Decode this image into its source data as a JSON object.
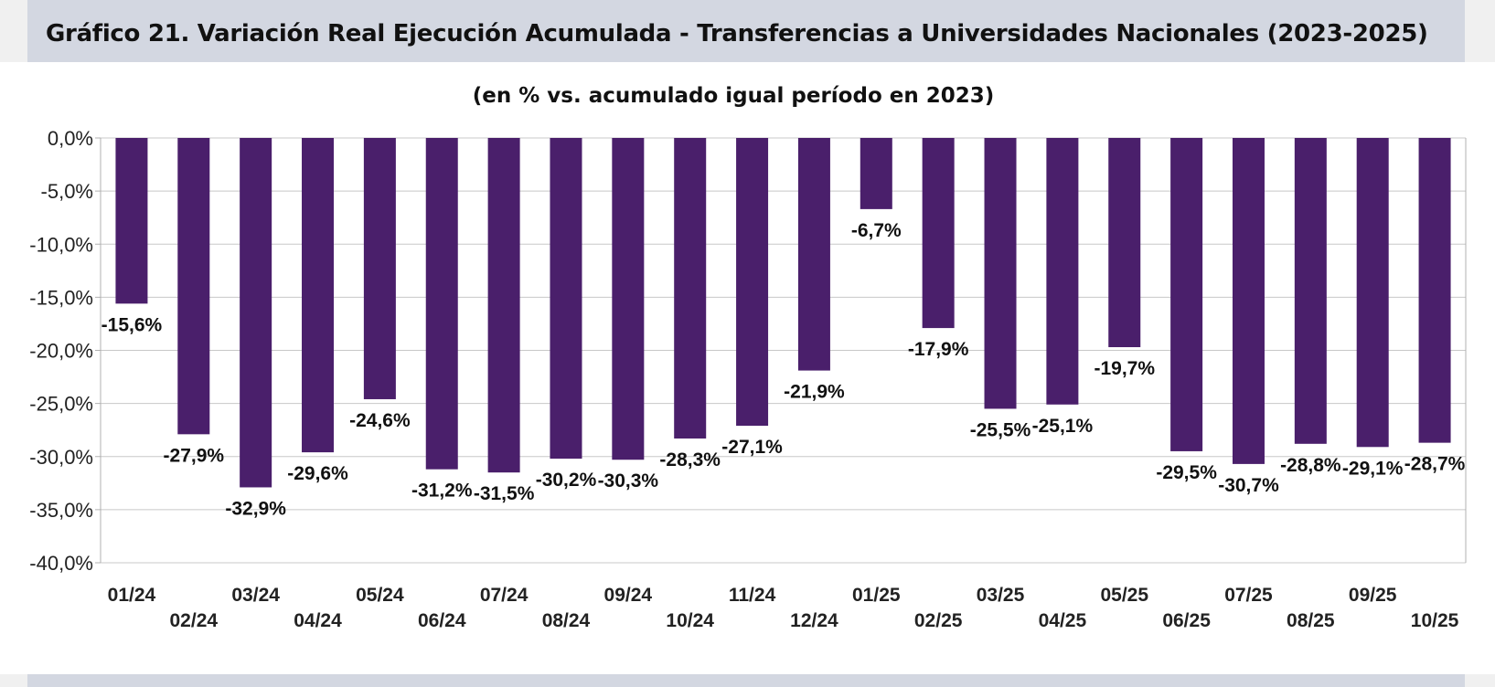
{
  "header": {
    "title": "Gráfico 21. Variación Real Ejecución Acumulada - Transferencias a Universidades Nacionales (2023-2025)"
  },
  "colors": {
    "bar": "#4a1f6b",
    "grid": "#c8c8c8",
    "axis": "#b0b0b0",
    "header_band": "#d3d7e1"
  },
  "chart_data": {
    "type": "bar",
    "title": "(en % vs. acumulado igual período en 2023)",
    "xlabel": "",
    "ylabel": "",
    "ylim": [
      -40,
      0
    ],
    "yticks": [
      0,
      -5,
      -10,
      -15,
      -20,
      -25,
      -30,
      -35,
      -40
    ],
    "ytick_labels": [
      "0,0%",
      "-5,0%",
      "-10,0%",
      "-15,0%",
      "-20,0%",
      "-25,0%",
      "-30,0%",
      "-35,0%",
      "-40,0%"
    ],
    "grid": true,
    "categories": [
      "01/24",
      "02/24",
      "03/24",
      "04/24",
      "05/24",
      "06/24",
      "07/24",
      "08/24",
      "09/24",
      "10/24",
      "11/24",
      "12/24",
      "01/25",
      "02/25",
      "03/25",
      "04/25",
      "05/25",
      "06/25",
      "07/25",
      "08/25",
      "09/25",
      "10/25"
    ],
    "values": [
      -15.6,
      -27.9,
      -32.9,
      -29.6,
      -24.6,
      -31.2,
      -31.5,
      -30.2,
      -30.3,
      -28.3,
      -27.1,
      -21.9,
      -6.7,
      -17.9,
      -25.5,
      -25.1,
      -19.7,
      -29.5,
      -30.7,
      -28.8,
      -29.1,
      -28.7
    ],
    "data_labels": [
      "-15,6%",
      "-27,9%",
      "-32,9%",
      "-29,6%",
      "-24,6%",
      "-31,2%",
      "-31,5%",
      "-30,2%",
      "-30,3%",
      "-28,3%",
      "-27,1%",
      "-21,9%",
      "-6,7%",
      "-17,9%",
      "-25,5%",
      "-25,1%",
      "-19,7%",
      "-29,5%",
      "-30,7%",
      "-28,8%",
      "-29,1%",
      "-28,7%"
    ]
  }
}
